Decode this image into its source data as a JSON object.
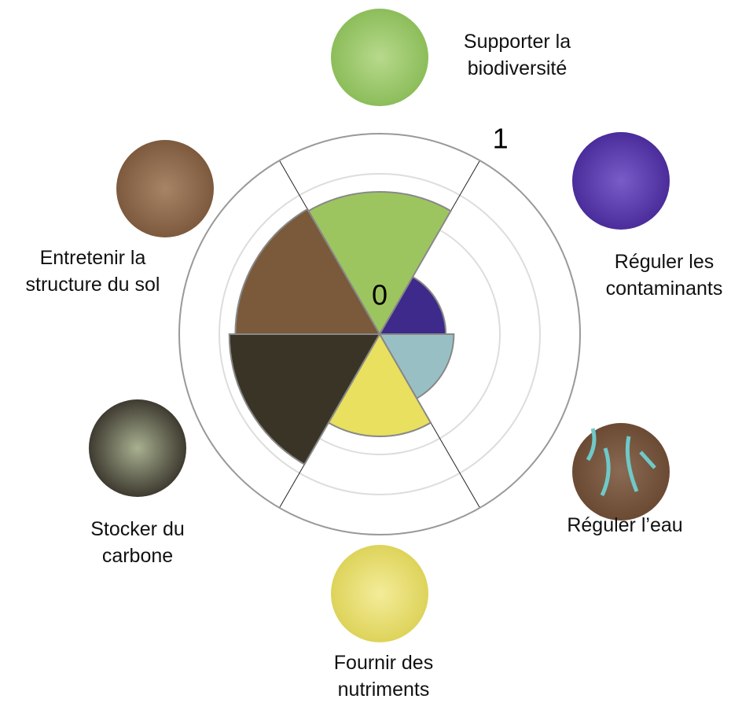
{
  "chart_data": {
    "type": "polar_area",
    "categories": [
      "Supporter la\nbiodiversité",
      "Réguler les\ncontaminants",
      "Réguler l’eau",
      "Fournir des\nnutriments",
      "Stocker du\ncarbone",
      "Entretenir la\nstructure du sol"
    ],
    "values": [
      0.71,
      0.33,
      0.37,
      0.51,
      0.75,
      0.72
    ],
    "colors": [
      "#9dc55f",
      "#3e2a8a",
      "#98c0c4",
      "#e8e05e",
      "#3a3426",
      "#7a5a3a"
    ],
    "ylim": [
      0,
      1
    ],
    "yticks": [
      0,
      1
    ]
  }
}
